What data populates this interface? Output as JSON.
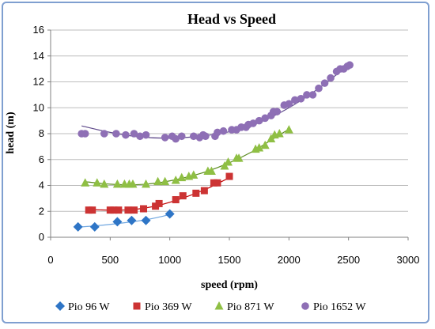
{
  "chart_data": {
    "type": "scatter",
    "title": "Head vs Speed",
    "xlabel": "speed (rpm)",
    "ylabel": "head (m)",
    "xlim": [
      0,
      3000
    ],
    "ylim": [
      0,
      16
    ],
    "xticks": [
      0,
      500,
      1000,
      1500,
      2000,
      2500,
      3000
    ],
    "yticks": [
      0,
      2,
      4,
      6,
      8,
      10,
      12,
      14,
      16
    ],
    "grid": "horizontal",
    "legend_position": "bottom",
    "series": [
      {
        "name": "Pio 96 W",
        "marker": "diamond",
        "color": "#2e75c6",
        "trend_color": "#6fa6e0",
        "x": [
          230,
          370,
          560,
          680,
          800,
          1000
        ],
        "y": [
          0.8,
          0.8,
          1.2,
          1.3,
          1.3,
          1.8
        ],
        "trend": [
          [
            230,
            0.78
          ],
          [
            400,
            0.9
          ],
          [
            600,
            1.1
          ],
          [
            800,
            1.35
          ],
          [
            1000,
            1.75
          ]
        ]
      },
      {
        "name": "Pio 369 W",
        "marker": "square",
        "color": "#cc3333",
        "trend_color": "#c00000",
        "x": [
          320,
          350,
          500,
          530,
          570,
          650,
          700,
          780,
          880,
          910,
          1050,
          1110,
          1220,
          1290,
          1370,
          1400,
          1500
        ],
        "y": [
          2.1,
          2.1,
          2.1,
          2.1,
          2.1,
          2.1,
          2.1,
          2.2,
          2.4,
          2.6,
          2.9,
          3.2,
          3.4,
          3.6,
          4.2,
          4.2,
          4.7
        ],
        "trend": [
          [
            300,
            2.15
          ],
          [
            500,
            2.1
          ],
          [
            700,
            2.15
          ],
          [
            900,
            2.45
          ],
          [
            1100,
            3.0
          ],
          [
            1300,
            3.7
          ],
          [
            1500,
            4.6
          ]
        ]
      },
      {
        "name": "Pio 871 W",
        "marker": "triangle",
        "color": "#8fbf44",
        "trend_color": "#5a8a1e",
        "x": [
          290,
          390,
          450,
          560,
          620,
          660,
          690,
          800,
          900,
          960,
          1050,
          1100,
          1160,
          1200,
          1320,
          1350,
          1460,
          1490,
          1560,
          1580,
          1720,
          1750,
          1800,
          1850,
          1880,
          1920,
          2000
        ],
        "y": [
          4.2,
          4.2,
          4.1,
          4.1,
          4.1,
          4.1,
          4.1,
          4.1,
          4.3,
          4.3,
          4.4,
          4.6,
          4.7,
          4.8,
          5.1,
          5.1,
          5.5,
          5.8,
          6.1,
          6.1,
          6.8,
          6.9,
          7.1,
          7.6,
          7.9,
          8.0,
          8.3
        ],
        "trend": [
          [
            280,
            4.3
          ],
          [
            500,
            4.1
          ],
          [
            700,
            4.05
          ],
          [
            900,
            4.2
          ],
          [
            1100,
            4.55
          ],
          [
            1300,
            5.05
          ],
          [
            1500,
            5.75
          ],
          [
            1700,
            6.65
          ],
          [
            1850,
            7.5
          ],
          [
            2000,
            8.35
          ]
        ]
      },
      {
        "name": "Pio 1652 W",
        "marker": "circle",
        "color": "#8e6fb5",
        "trend_color": "#5f4a8b",
        "x": [
          260,
          290,
          450,
          550,
          630,
          700,
          750,
          800,
          960,
          1020,
          1050,
          1100,
          1200,
          1250,
          1280,
          1300,
          1380,
          1400,
          1450,
          1520,
          1560,
          1600,
          1640,
          1660,
          1700,
          1750,
          1800,
          1850,
          1870,
          1900,
          1960,
          2000,
          2050,
          2100,
          2150,
          2200,
          2250,
          2300,
          2350,
          2400,
          2430,
          2460,
          2490,
          2510
        ],
        "y": [
          8.0,
          8.0,
          8.0,
          8.0,
          7.9,
          8.0,
          7.8,
          7.9,
          7.7,
          7.8,
          7.6,
          7.8,
          7.8,
          7.7,
          7.9,
          7.8,
          7.8,
          8.1,
          8.2,
          8.3,
          8.3,
          8.5,
          8.5,
          8.7,
          8.8,
          9.0,
          9.2,
          9.4,
          9.7,
          9.7,
          10.2,
          10.3,
          10.6,
          10.7,
          11.0,
          11.0,
          11.5,
          11.9,
          12.3,
          12.8,
          13.0,
          13.0,
          13.2,
          13.3
        ],
        "trend": [
          [
            260,
            8.6
          ],
          [
            500,
            8.1
          ],
          [
            750,
            7.75
          ],
          [
            1000,
            7.65
          ],
          [
            1250,
            7.8
          ],
          [
            1500,
            8.15
          ],
          [
            1750,
            8.85
          ],
          [
            2000,
            10.0
          ],
          [
            2250,
            11.5
          ],
          [
            2500,
            13.3
          ]
        ]
      }
    ]
  }
}
